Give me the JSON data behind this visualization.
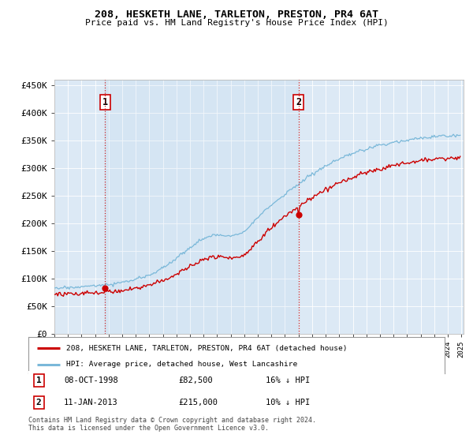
{
  "title": "208, HESKETH LANE, TARLETON, PRESTON, PR4 6AT",
  "subtitle": "Price paid vs. HM Land Registry's House Price Index (HPI)",
  "ylabel_vals": [
    "£0",
    "£50K",
    "£100K",
    "£150K",
    "£200K",
    "£250K",
    "£300K",
    "£350K",
    "£400K",
    "£450K"
  ],
  "yticks": [
    0,
    50000,
    100000,
    150000,
    200000,
    250000,
    300000,
    350000,
    400000,
    450000
  ],
  "ylim": [
    0,
    460000
  ],
  "sale1_date": "08-OCT-1998",
  "sale1_price": 82500,
  "sale1_label": "1",
  "sale1_pct": "16% ↓ HPI",
  "sale2_date": "11-JAN-2013",
  "sale2_price": 215000,
  "sale2_label": "2",
  "sale2_pct": "10% ↓ HPI",
  "legend_property": "208, HESKETH LANE, TARLETON, PRESTON, PR4 6AT (detached house)",
  "legend_hpi": "HPI: Average price, detached house, West Lancashire",
  "hpi_color": "#7ab8d9",
  "property_color": "#cc0000",
  "background_color": "#ffffff",
  "plot_bg": "#dce9f5",
  "grid_color": "#ffffff",
  "sale_line_color": "#cc0000",
  "footnote": "Contains HM Land Registry data © Crown copyright and database right 2024.\nThis data is licensed under the Open Government Licence v3.0.",
  "x_start_year": 1995,
  "x_end_year": 2025
}
